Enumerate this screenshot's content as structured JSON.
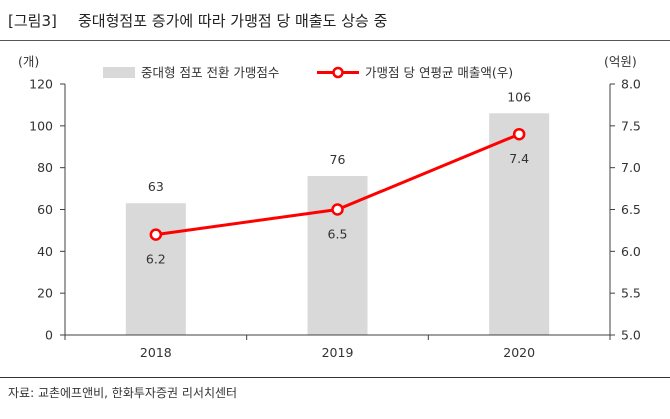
{
  "figure": {
    "number": "[그림3]",
    "title": "중대형점포 증가에 따라 가맹점 당 매출도 상승 중"
  },
  "chart_data": {
    "type": "bar",
    "categories": [
      "2018",
      "2019",
      "2020"
    ],
    "series": [
      {
        "name": "중대형 점포 전환 가맹점수",
        "type": "bar",
        "axis": "left",
        "values": [
          63,
          76,
          106
        ],
        "color": "#d9d9d9"
      },
      {
        "name": "가맹점 당 연평균 매출액(우)",
        "type": "line",
        "axis": "right",
        "values": [
          6.2,
          6.5,
          7.4
        ],
        "color": "#ff0000",
        "marker": "hollow-circle"
      }
    ],
    "y_left": {
      "unit": "(개)",
      "ylim": [
        0,
        120
      ],
      "ticks": [
        "0",
        "20",
        "40",
        "60",
        "80",
        "100",
        "120"
      ]
    },
    "y_right": {
      "unit": "(억원)",
      "ylim": [
        5.0,
        8.0
      ],
      "ticks": [
        "5.0",
        "5.5",
        "6.0",
        "6.5",
        "7.0",
        "7.5",
        "8.0"
      ]
    },
    "data_labels": true,
    "grid": false,
    "legend": "top"
  },
  "source": "자료: 교촌에프앤비, 한화투자증권 리서치센터"
}
